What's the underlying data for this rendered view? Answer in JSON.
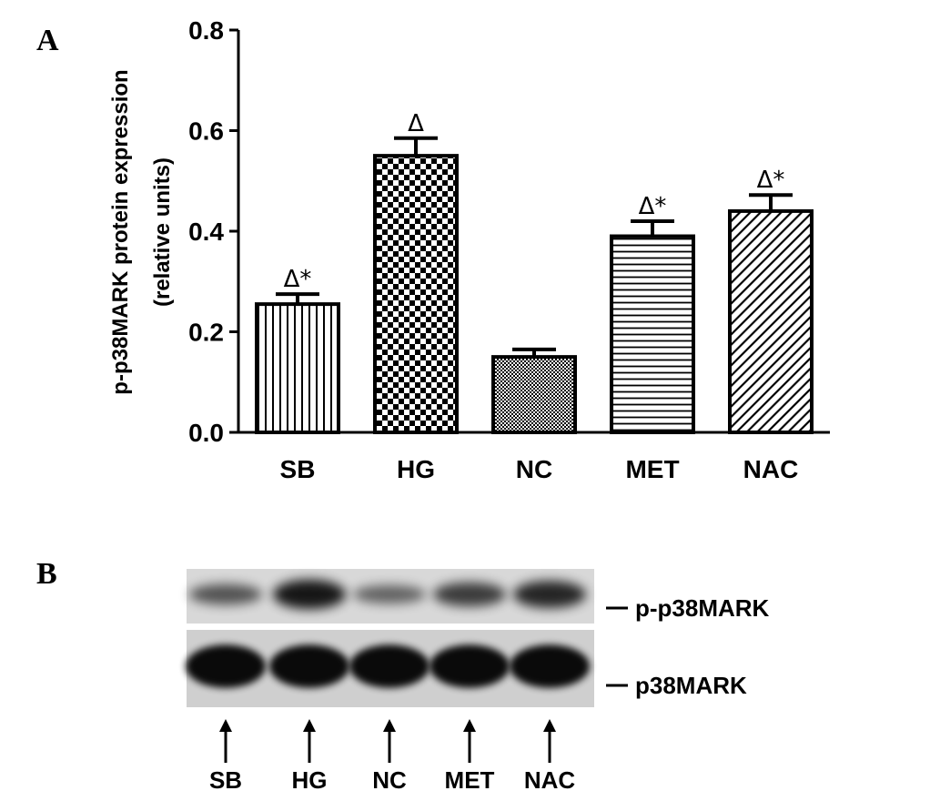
{
  "panels": {
    "a_label": "A",
    "b_label": "B"
  },
  "chart_data": {
    "type": "bar",
    "title": "",
    "ylabel_line1": "p-p38MARK protein expression",
    "ylabel_line2": "(relative units)",
    "xlabel": "",
    "ylim": [
      0,
      0.8
    ],
    "yticks": [
      "0.0",
      "0.2",
      "0.4",
      "0.6",
      "0.8"
    ],
    "ytick_values": [
      0,
      0.2,
      0.4,
      0.6,
      0.8
    ],
    "categories": [
      "SB",
      "HG",
      "NC",
      "MET",
      "NAC"
    ],
    "values": [
      0.255,
      0.55,
      0.15,
      0.39,
      0.44
    ],
    "errors": [
      0.02,
      0.035,
      0.015,
      0.03,
      0.032
    ],
    "annotations": [
      "Δ*",
      "Δ",
      "",
      "Δ*",
      "Δ*"
    ],
    "patterns": [
      "vertical-lines",
      "checkerboard",
      "fine-checker",
      "horizontal-lines",
      "diagonal-lines"
    ]
  },
  "blot": {
    "band_labels": [
      "p-p38MARK",
      "p38MARK"
    ],
    "lanes": [
      "SB",
      "HG",
      "NC",
      "MET",
      "NAC"
    ],
    "phospho_intensity": [
      0.45,
      0.85,
      0.35,
      0.6,
      0.75
    ],
    "total_intensity": [
      0.95,
      0.95,
      0.95,
      0.95,
      0.95
    ]
  }
}
